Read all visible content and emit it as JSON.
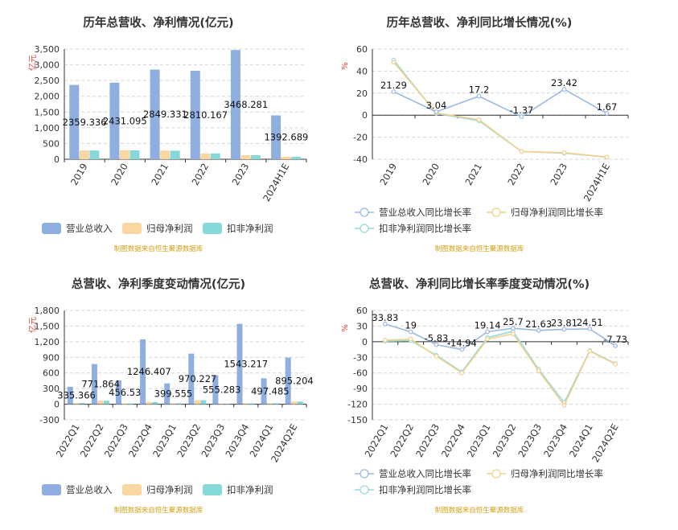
{
  "source_note": "制图数据来自恒生聚源数据库",
  "colors": {
    "revenue": "#8eafe0",
    "net_profit": "#fad7a0",
    "deducted_profit": "#87d8d8",
    "rev_line": "#9db8e3",
    "np_line": "#f4d08a",
    "dp_line": "#96dcdc",
    "grid": "#d6d6d6",
    "axis": "#333333"
  },
  "chart_data": [
    {
      "type": "bar",
      "title": "历年总营收、净利情况(亿元)",
      "unit_label": "亿元",
      "categories": [
        "2019",
        "2020",
        "2021",
        "2022",
        "2023",
        "2024H1E"
      ],
      "ylim": [
        0,
        3500
      ],
      "yticks": [
        "0",
        "500",
        "1,000",
        "1,500",
        "2,000",
        "2,500",
        "3,000",
        "3,500"
      ],
      "grid": true,
      "legend_position": "bottom",
      "series": [
        {
          "name": "营业总收入",
          "values": [
            2359.336,
            2431.095,
            2849.331,
            2810.167,
            3468.281,
            1392.689
          ],
          "labels": [
            "2359.336",
            "2431.095",
            "2849.331",
            "2810.167",
            "3468.281",
            "1392.689"
          ]
        },
        {
          "name": "归母净利润",
          "values": [
            280,
            285,
            275,
            185,
            130,
            80
          ]
        },
        {
          "name": "扣非净利润",
          "values": [
            278,
            280,
            270,
            182,
            128,
            78
          ]
        }
      ]
    },
    {
      "type": "line",
      "title": "历年总营收、净利同比增长情况(%)",
      "unit_label": "%",
      "categories": [
        "2019",
        "2020",
        "2021",
        "2022",
        "2023",
        "2024H1E"
      ],
      "ylim": [
        -40,
        60
      ],
      "yticks": [
        "-40",
        "-20",
        "0",
        "20",
        "40",
        "60"
      ],
      "grid": true,
      "legend_position": "bottom",
      "series": [
        {
          "name": "营业总收入同比增长率",
          "values": [
            21.29,
            3.04,
            17.2,
            -1.37,
            23.42,
            1.67
          ],
          "labels": [
            "21.29",
            "3.04",
            "17.2",
            "-1.37",
            "23.42",
            "1.67"
          ]
        },
        {
          "name": "归母净利润同比增长率",
          "values": [
            48,
            2,
            -4,
            -33,
            -34,
            -38
          ]
        },
        {
          "name": "扣非净利润同比增长率",
          "values": [
            50,
            1.5,
            -5,
            -33,
            -34.5,
            -38
          ]
        }
      ]
    },
    {
      "type": "bar",
      "title": "总营收、净利季度变动情况(亿元)",
      "unit_label": "亿元",
      "categories": [
        "2022Q1",
        "2022Q2",
        "2022Q3",
        "2022Q4",
        "2023Q1",
        "2023Q2",
        "2023Q3",
        "2023Q4",
        "2024Q1",
        "2024Q2E"
      ],
      "ylim": [
        -300,
        1800
      ],
      "yticks": [
        "-300",
        "0",
        "300",
        "600",
        "900",
        "1,200",
        "1,500",
        "1,800"
      ],
      "grid": true,
      "legend_position": "bottom",
      "series": [
        {
          "name": "营业总收入",
          "values": [
            335.366,
            771.864,
            456.53,
            1246.407,
            399.555,
            970.227,
            555.283,
            1543.217,
            497.485,
            895.204
          ],
          "labels": [
            "335.366",
            "771.864",
            "456.53",
            "1246.407",
            "399.555",
            "970.227",
            "555.283",
            "1543.217",
            "497.485",
            "895.204"
          ]
        },
        {
          "name": "归母净利润",
          "values": [
            25,
            70,
            15,
            45,
            20,
            80,
            10,
            20,
            20,
            55
          ]
        },
        {
          "name": "扣非净利润",
          "values": [
            22,
            68,
            12,
            42,
            18,
            78,
            8,
            15,
            18,
            52
          ]
        }
      ]
    },
    {
      "type": "line",
      "title": "总营收、净利同比增长率季度变动情况(%)",
      "unit_label": "%",
      "categories": [
        "2022Q1",
        "2022Q2",
        "2022Q3",
        "2022Q4",
        "2023Q1",
        "2023Q2",
        "2023Q3",
        "2023Q4",
        "2024Q1",
        "2024Q2E"
      ],
      "ylim": [
        -150,
        60
      ],
      "yticks": [
        "-150",
        "-120",
        "-90",
        "-60",
        "-30",
        "0",
        "30",
        "60"
      ],
      "grid": true,
      "legend_position": "bottom",
      "series": [
        {
          "name": "营业总收入同比增长率",
          "values": [
            33.83,
            19,
            -5.83,
            -14.94,
            19.14,
            25.7,
            21.63,
            23.81,
            24.51,
            -7.73
          ],
          "labels": [
            "33.83",
            "19",
            "-5.83",
            "-14.94",
            "19.14",
            "25.7",
            "21.63",
            "23.81",
            "24.51",
            "-7.73"
          ]
        },
        {
          "name": "归母净利润同比增长率",
          "values": [
            3,
            5,
            -28,
            -60,
            5,
            15,
            -56,
            -122,
            -18,
            -43
          ]
        },
        {
          "name": "扣非净利润同比增长率",
          "values": [
            1,
            2,
            -26,
            -58,
            8,
            20,
            -53,
            -117,
            -17,
            -42
          ]
        }
      ]
    }
  ]
}
